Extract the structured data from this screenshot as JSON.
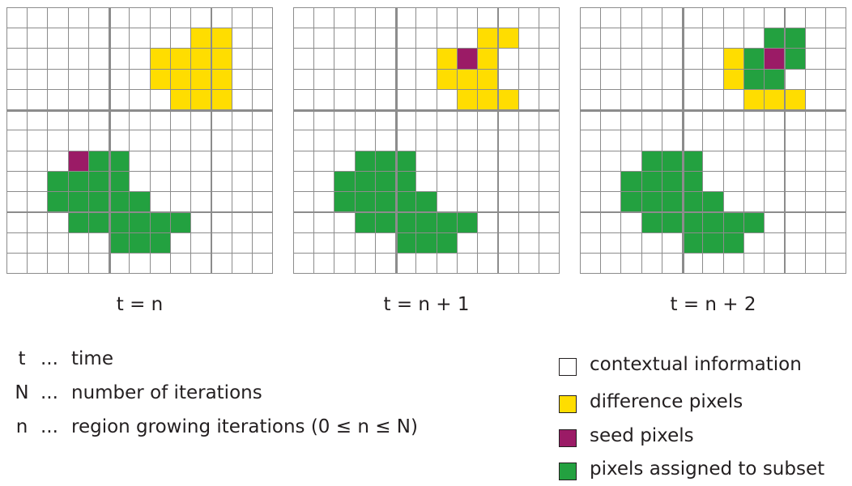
{
  "panels": [
    {
      "label": "t = n",
      "rows": [
        "wwwwwwwwwwwww",
        "wwwwwwwwwyywwww",
        "wwwwwwwyyyywww",
        "wwwwwwwyyyywww",
        "wwwwwwwwyyywww",
        "wwwwwwwwwwwww",
        "wwwwwwwwwwwww",
        "wwwsggwwwwwww",
        "wwggggwwwwwww",
        "wwgggggwwwwww",
        "wwwggggggwwww",
        "wwwwwgggwwwww",
        "wwwwwwwwwwwww"
      ]
    },
    {
      "label": "t = n + 1",
      "rows": [
        "wwwwwwwwwwwww",
        "wwwwwwwwwyywwww",
        "wwwwwwwysywww",
        "wwwwwwwyyywww",
        "wwwwwwwwyyywww",
        "wwwwwwwwwwwww",
        "wwwwwwwwwwwww",
        "wwwgggwwwwwww",
        "wwggggwwwwwww",
        "wwgggggwwwwww",
        "wwwggggggwwww",
        "wwwwwgggwwwww",
        "wwwwwwwwwwwww"
      ]
    },
    {
      "label": "t = n + 2",
      "rows": [
        "wwwwwwwwwwwww",
        "wwwwwwwwwggwwww",
        "wwwwwwwygsgwww",
        "wwwwwwwyggwwww",
        "wwwwwwwwyyywww",
        "wwwwwwwwwwwww",
        "wwwwwwwwwwwww",
        "wwwgggwwwwwww",
        "wwggggwwwwwww",
        "wwgggggwwwwww",
        "wwwggggggwwww",
        "wwwwwgggwwwww",
        "wwwwwwwwwwwww"
      ]
    }
  ],
  "definitions": [
    {
      "symbol": "t",
      "dots": "...",
      "text": "time"
    },
    {
      "symbol": "N",
      "dots": "...",
      "text": "number of iterations"
    },
    {
      "symbol": "n",
      "dots": "...",
      "text": "region growing iterations (0 ≤ n ≤ N)"
    }
  ],
  "legend": [
    {
      "text": "contextual information",
      "color": "#ffffff"
    },
    {
      "text": "difference pixels",
      "color": "#ffdd00"
    },
    {
      "text": "seed pixels",
      "color": "#9b1b66"
    },
    {
      "text": "pixels assigned to subset",
      "color": "#23a140"
    }
  ]
}
